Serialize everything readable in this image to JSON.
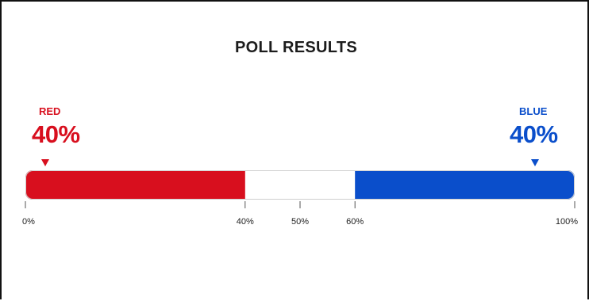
{
  "chart_data": {
    "type": "bar",
    "title": "POLL RESULTS",
    "series": [
      {
        "name": "RED",
        "value": 40,
        "color": "#d80f1e"
      },
      {
        "name": "BLUE",
        "value": 40,
        "color": "#0a4ecb"
      }
    ],
    "value_labels": {
      "red": "40%",
      "blue": "40%"
    },
    "ticks": [
      {
        "value": 0,
        "label": "0%"
      },
      {
        "value": 40,
        "label": "40%"
      },
      {
        "value": 50,
        "label": "50%"
      },
      {
        "value": 60,
        "label": "60%"
      },
      {
        "value": 100,
        "label": "100%"
      }
    ],
    "xlim": [
      0,
      100
    ],
    "grid": false,
    "legend": "top"
  },
  "colors": {
    "red": "#d80f1e",
    "blue": "#0a4ecb",
    "neutral": "#ffffff",
    "outline": "#cfcfcf"
  },
  "icons": {
    "red_marker": "triangle-down-icon",
    "blue_marker": "triangle-down-icon"
  }
}
